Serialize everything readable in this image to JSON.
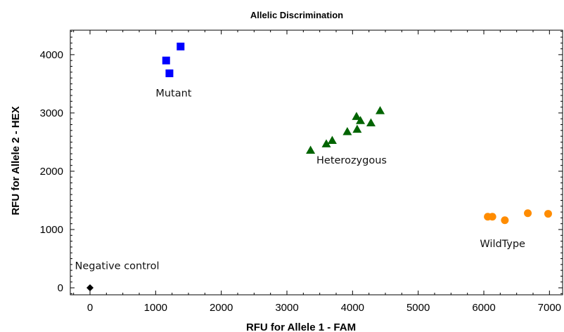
{
  "chart_data": {
    "type": "scatter",
    "title": "Allelic Discrimination",
    "xlabel": "RFU for Allele 1 - FAM",
    "ylabel": "RFU for Allele 2 - HEX",
    "xlim": [
      -300,
      7200
    ],
    "ylim": [
      -120,
      4420
    ],
    "xticks": [
      0,
      1000,
      2000,
      3000,
      4000,
      5000,
      6000,
      7000
    ],
    "yticks": [
      0,
      1000,
      2000,
      3000,
      4000
    ],
    "grid": false,
    "legend": "none",
    "series": [
      {
        "marker": "square",
        "color": "#0000ff",
        "points": [
          [
            1160,
            3900
          ],
          [
            1210,
            3680
          ],
          [
            1380,
            4140
          ]
        ]
      },
      {
        "marker": "triangle",
        "color": "#006400",
        "points": [
          [
            3360,
            2360
          ],
          [
            3600,
            2470
          ],
          [
            3690,
            2530
          ],
          [
            3920,
            2680
          ],
          [
            4070,
            2720
          ],
          [
            4060,
            2940
          ],
          [
            4120,
            2870
          ],
          [
            4280,
            2830
          ],
          [
            4420,
            3040
          ]
        ]
      },
      {
        "marker": "circle",
        "color": "#ff8c00",
        "points": [
          [
            6060,
            1220
          ],
          [
            6130,
            1220
          ],
          [
            6320,
            1160
          ],
          [
            6670,
            1280
          ],
          [
            6980,
            1270
          ]
        ]
      },
      {
        "marker": "diamond",
        "color": "#000000",
        "points": [
          [
            0,
            0
          ]
        ]
      }
    ],
    "annotations": [
      {
        "text": "Mutant",
        "x": 1000,
        "y": 3280
      },
      {
        "text": "Heterozygous",
        "x": 3450,
        "y": 2130
      },
      {
        "text": "WildType",
        "x": 5940,
        "y": 700
      },
      {
        "text": "Negative control",
        "x": -230,
        "y": 320
      }
    ]
  }
}
